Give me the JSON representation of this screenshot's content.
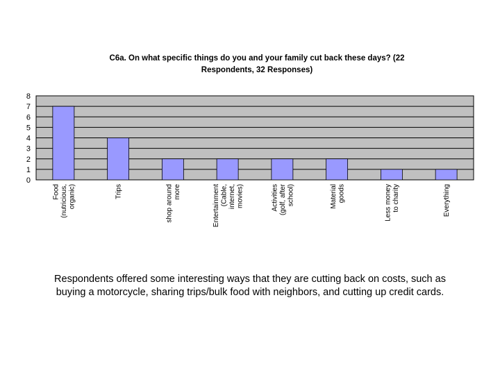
{
  "chart_data": {
    "type": "bar",
    "title_line1": "C6a. On what specific things do you and your family cut back these days? (22",
    "title_line2": "Respondents, 32 Responses)",
    "categories": [
      "Food (nutricious, organic)",
      "Trips",
      "shop around more",
      "Entertainment (Cable, internet, movies)",
      "Activities (golf, after school)",
      "Material goods",
      "Less money to charity",
      "Everything"
    ],
    "category_label_lines": [
      [
        "Food",
        "(nutricious,",
        "organic)"
      ],
      [
        "Trips"
      ],
      [
        "shop around",
        "more"
      ],
      [
        "Entertainment",
        "(Cable,",
        "internet,",
        "movies)"
      ],
      [
        "Activities",
        "(golf, after",
        "school)"
      ],
      [
        "Material",
        "goods"
      ],
      [
        "Less money",
        "to charity"
      ],
      [
        "Everything"
      ]
    ],
    "values": [
      7,
      4,
      2,
      2,
      2,
      2,
      1,
      1
    ],
    "ylim": [
      0,
      8
    ],
    "yticks": [
      "0",
      "1",
      "2",
      "3",
      "4",
      "5",
      "6",
      "7",
      "8"
    ],
    "grid": "horizontal",
    "xlabel": "",
    "ylabel": "",
    "colors": {
      "plot_background": "#c0c0c0",
      "bar_fill": "#9999ff",
      "gridline": "#000000"
    }
  },
  "caption": {
    "line1": "Respondents offered some interesting ways that they are cutting back on costs, such as",
    "line2": "buying a motorcycle, sharing trips/bulk food with neighbors, and cutting up credit cards."
  }
}
